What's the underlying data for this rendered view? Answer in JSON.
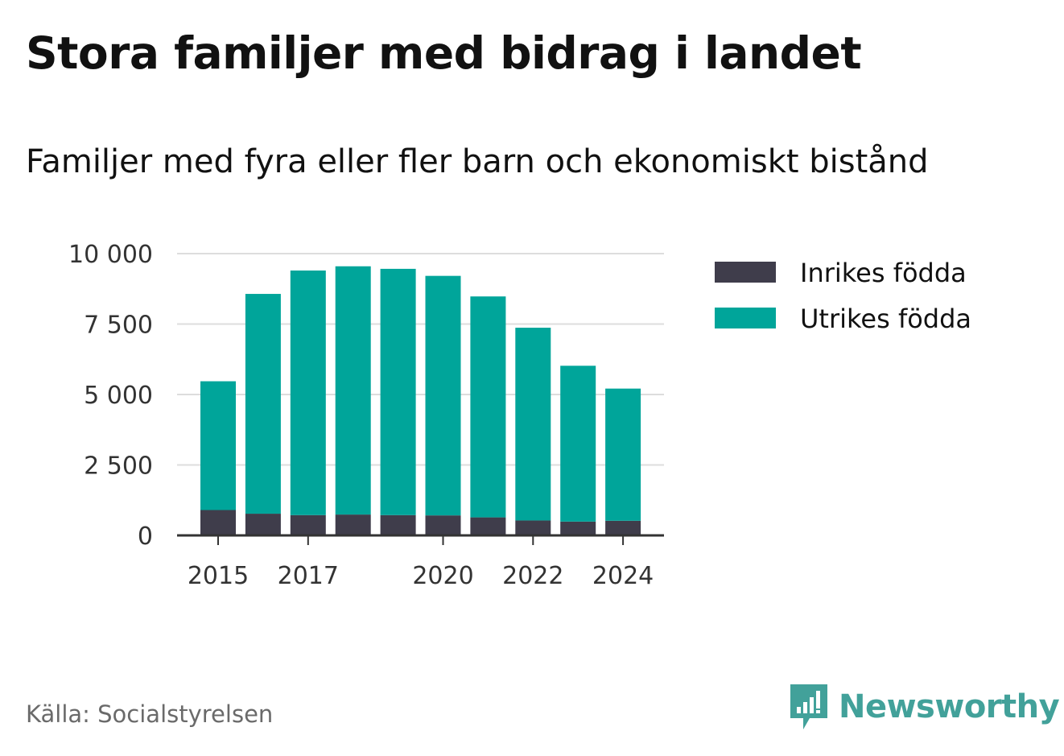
{
  "title": "Stora familjer med bidrag i landet",
  "subtitle": "Familjer med fyra eller fler barn och ekonomiskt bistånd",
  "source": "Källa: Socialstyrelsen",
  "brand": "Newsworthy",
  "colors": {
    "inrikes": "#3f3d4b",
    "utrikes": "#00a59a",
    "grid": "#dddddd",
    "axis": "#333333",
    "tick_text": "#333333",
    "brand": "#42a19a"
  },
  "chart_data": {
    "type": "bar",
    "stacked": true,
    "categories": [
      "2015",
      "2016",
      "2017",
      "2018",
      "2019",
      "2020",
      "2021",
      "2022",
      "2023",
      "2024"
    ],
    "x_tick_labels": [
      "2015",
      "",
      "2017",
      "",
      "",
      "2020",
      "",
      "2022",
      "",
      "2024"
    ],
    "series": [
      {
        "name": "Inrikes födda",
        "values": [
          900,
          770,
          720,
          740,
          720,
          710,
          640,
          530,
          490,
          520
        ]
      },
      {
        "name": "Utrikes födda",
        "values": [
          4570,
          7800,
          8680,
          8810,
          8740,
          8500,
          7840,
          6840,
          5530,
          4690
        ]
      }
    ],
    "ylim": [
      0,
      10000
    ],
    "y_ticks": [
      0,
      2500,
      5000,
      7500,
      10000
    ],
    "y_tick_labels": [
      "0",
      "2 500",
      "5 000",
      "7 500",
      "10 000"
    ],
    "grid": true,
    "legend_position": "right",
    "xlabel": "",
    "ylabel": ""
  }
}
